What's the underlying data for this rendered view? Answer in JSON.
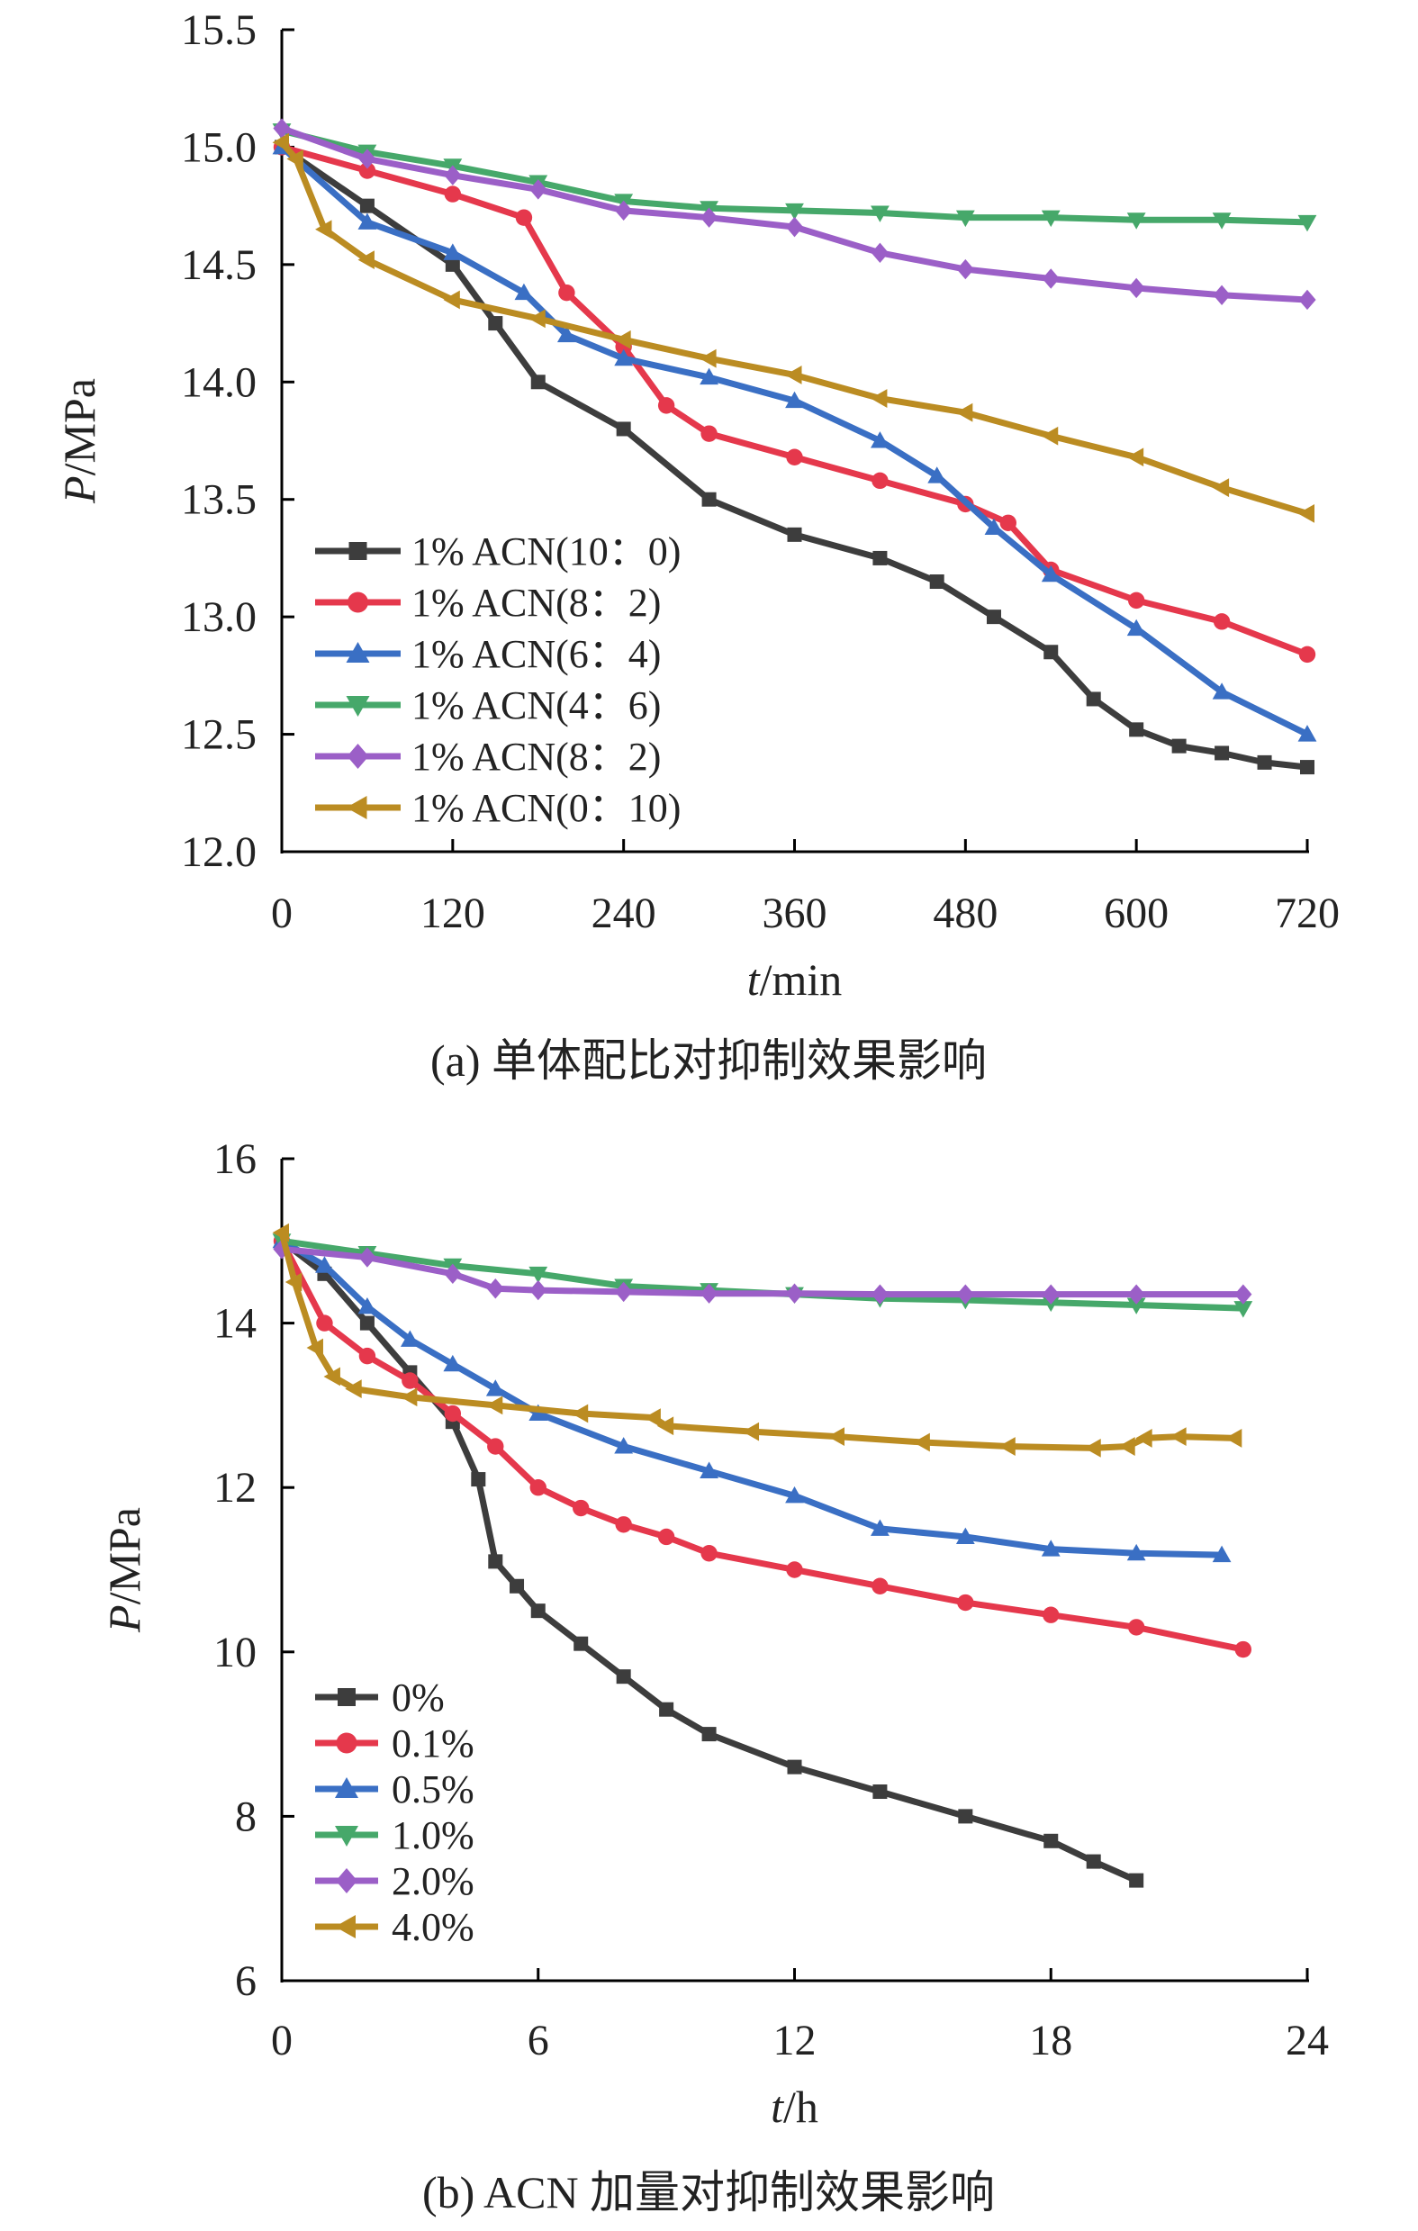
{
  "chart_data": [
    {
      "type": "line",
      "caption": "(a) 单体配比对抑制效果影响",
      "xlabel_italic": "t",
      "xlabel_unit": "/min",
      "ylabel_italic": "P",
      "ylabel_unit": "/MPa",
      "xlim": [
        0,
        720
      ],
      "ylim": [
        12.0,
        15.5
      ],
      "xticks": [
        0,
        120,
        240,
        360,
        480,
        600,
        720
      ],
      "yticks": [
        12.0,
        12.5,
        13.0,
        13.5,
        14.0,
        14.5,
        15.0,
        15.5
      ],
      "ytick_labels": [
        "12.0",
        "12.5",
        "13.0",
        "13.5",
        "14.0",
        "14.5",
        "15.0",
        "15.5"
      ],
      "legend_position": "bottom-left",
      "grid": false,
      "series": [
        {
          "name": "1% ACN(10：0)",
          "color": "#3d3d3d",
          "marker": "square",
          "x": [
            0,
            60,
            120,
            150,
            180,
            240,
            300,
            360,
            420,
            460,
            500,
            540,
            570,
            600,
            630,
            660,
            690,
            720
          ],
          "y": [
            15.0,
            14.75,
            14.5,
            14.25,
            14.0,
            13.8,
            13.5,
            13.35,
            13.25,
            13.15,
            13.0,
            12.85,
            12.65,
            12.52,
            12.45,
            12.42,
            12.38,
            12.36
          ]
        },
        {
          "name": "1% ACN(8：2)",
          "color": "#e5384c",
          "marker": "circle",
          "x": [
            0,
            60,
            120,
            170,
            200,
            240,
            270,
            300,
            360,
            420,
            480,
            510,
            540,
            600,
            660,
            720
          ],
          "y": [
            15.0,
            14.9,
            14.8,
            14.7,
            14.38,
            14.15,
            13.9,
            13.78,
            13.68,
            13.58,
            13.48,
            13.4,
            13.2,
            13.07,
            12.98,
            12.84
          ]
        },
        {
          "name": "1% ACN(6：4)",
          "color": "#3a6fc4",
          "marker": "triangle",
          "x": [
            0,
            60,
            120,
            170,
            200,
            240,
            300,
            360,
            420,
            460,
            500,
            540,
            600,
            660,
            720
          ],
          "y": [
            15.0,
            14.68,
            14.55,
            14.38,
            14.2,
            14.1,
            14.02,
            13.92,
            13.75,
            13.6,
            13.38,
            13.18,
            12.95,
            12.68,
            12.5
          ]
        },
        {
          "name": "1% ACN(4：6)",
          "color": "#46a86a",
          "marker": "triangle-down",
          "x": [
            0,
            60,
            120,
            180,
            240,
            300,
            360,
            420,
            480,
            540,
            600,
            660,
            720
          ],
          "y": [
            15.07,
            14.98,
            14.92,
            14.85,
            14.77,
            14.74,
            14.73,
            14.72,
            14.7,
            14.7,
            14.69,
            14.69,
            14.68
          ]
        },
        {
          "name": "1% ACN(8：2)",
          "color": "#9b5fc7",
          "marker": "diamond",
          "x": [
            0,
            60,
            120,
            180,
            240,
            300,
            360,
            420,
            480,
            540,
            600,
            660,
            720
          ],
          "y": [
            15.08,
            14.95,
            14.88,
            14.82,
            14.73,
            14.7,
            14.66,
            14.55,
            14.48,
            14.44,
            14.4,
            14.37,
            14.35
          ]
        },
        {
          "name": "1% ACN(0：10)",
          "color": "#bb8c22",
          "marker": "triangle-left",
          "x": [
            0,
            10,
            30,
            60,
            120,
            180,
            240,
            300,
            360,
            420,
            480,
            540,
            600,
            660,
            720
          ],
          "y": [
            15.02,
            14.95,
            14.65,
            14.52,
            14.35,
            14.27,
            14.18,
            14.1,
            14.03,
            13.93,
            13.87,
            13.77,
            13.68,
            13.55,
            13.44
          ]
        }
      ]
    },
    {
      "type": "line",
      "caption": "(b) ACN 加量对抑制效果影响",
      "xlabel_italic": "t",
      "xlabel_unit": "/h",
      "ylabel_italic": "P",
      "ylabel_unit": "/MPa",
      "xlim": [
        0,
        24
      ],
      "ylim": [
        6,
        16
      ],
      "xticks": [
        0,
        6,
        12,
        18,
        24
      ],
      "yticks": [
        6,
        8,
        10,
        12,
        14,
        16
      ],
      "ytick_labels": [
        "6",
        "8",
        "10",
        "12",
        "14",
        "16"
      ],
      "legend_position": "bottom-left",
      "grid": false,
      "series": [
        {
          "name": "0%",
          "color": "#3d3d3d",
          "marker": "square",
          "x": [
            0,
            1,
            2,
            3,
            4,
            4.6,
            5,
            5.5,
            6,
            7,
            8,
            9,
            10,
            12,
            14,
            16,
            18,
            19,
            20
          ],
          "y": [
            15.0,
            14.6,
            14.0,
            13.4,
            12.8,
            12.1,
            11.1,
            10.8,
            10.5,
            10.1,
            9.7,
            9.3,
            9.0,
            8.6,
            8.3,
            8.0,
            7.7,
            7.45,
            7.22
          ]
        },
        {
          "name": "0.1%",
          "color": "#e5384c",
          "marker": "circle",
          "x": [
            0,
            1,
            2,
            3,
            4,
            5,
            6,
            7,
            8,
            9,
            10,
            12,
            14,
            16,
            18,
            20,
            22.5
          ],
          "y": [
            15.0,
            14.0,
            13.6,
            13.3,
            12.9,
            12.5,
            12.0,
            11.75,
            11.55,
            11.4,
            11.2,
            11.0,
            10.8,
            10.6,
            10.45,
            10.3,
            10.03
          ]
        },
        {
          "name": "0.5%",
          "color": "#3a6fc4",
          "marker": "triangle",
          "x": [
            0,
            1,
            2,
            3,
            4,
            5,
            6,
            8,
            10,
            12,
            14,
            16,
            18,
            20,
            22
          ],
          "y": [
            15.0,
            14.7,
            14.2,
            13.8,
            13.5,
            13.2,
            12.9,
            12.5,
            12.2,
            11.9,
            11.5,
            11.4,
            11.25,
            11.2,
            11.18
          ]
        },
        {
          "name": "1.0%",
          "color": "#46a86a",
          "marker": "triangle-down",
          "x": [
            0,
            2,
            4,
            6,
            8,
            10,
            12,
            14,
            16,
            18,
            20,
            22.5
          ],
          "y": [
            15.0,
            14.85,
            14.7,
            14.6,
            14.45,
            14.4,
            14.35,
            14.3,
            14.28,
            14.25,
            14.22,
            14.18
          ]
        },
        {
          "name": "2.0%",
          "color": "#9b5fc7",
          "marker": "diamond",
          "x": [
            0,
            2,
            4,
            5,
            6,
            8,
            10,
            12,
            14,
            16,
            18,
            20,
            22.5
          ],
          "y": [
            14.9,
            14.8,
            14.6,
            14.42,
            14.4,
            14.38,
            14.36,
            14.36,
            14.35,
            14.35,
            14.35,
            14.35,
            14.35
          ]
        },
        {
          "name": "4.0%",
          "color": "#bb8c22",
          "marker": "triangle-left",
          "x": [
            0,
            0.3,
            0.8,
            1.2,
            1.7,
            3,
            5,
            7,
            8.7,
            9,
            11,
            13,
            15,
            17,
            19,
            19.8,
            20.2,
            21,
            22.3
          ],
          "y": [
            15.1,
            14.5,
            13.7,
            13.35,
            13.2,
            13.1,
            13.0,
            12.9,
            12.85,
            12.75,
            12.68,
            12.62,
            12.55,
            12.5,
            12.48,
            12.5,
            12.6,
            12.62,
            12.6
          ]
        }
      ]
    }
  ]
}
